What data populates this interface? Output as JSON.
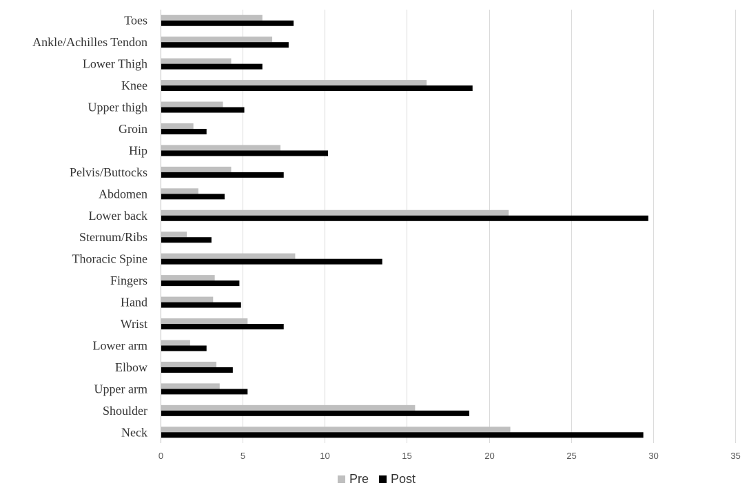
{
  "chart_data": {
    "type": "bar",
    "orientation": "horizontal",
    "categories": [
      "Toes",
      "Ankle/Achilles Tendon",
      "Lower Thigh",
      "Knee",
      "Upper thigh",
      "Groin",
      "Hip",
      "Pelvis/Buttocks",
      "Abdomen",
      "Lower back",
      "Sternum/Ribs",
      "Thoracic Spine",
      "Fingers",
      "Hand",
      "Wrist",
      "Lower arm",
      "Elbow",
      "Upper arm",
      "Shoulder",
      "Neck"
    ],
    "series": [
      {
        "name": "Pre",
        "color": "#bfbfbf",
        "values": [
          6.2,
          6.8,
          4.3,
          16.2,
          3.8,
          2.0,
          7.3,
          4.3,
          2.3,
          21.2,
          1.6,
          8.2,
          3.3,
          3.2,
          5.3,
          1.8,
          3.4,
          3.6,
          15.5,
          21.3
        ]
      },
      {
        "name": "Post",
        "color": "#000000",
        "values": [
          8.1,
          7.8,
          6.2,
          19.0,
          5.1,
          2.8,
          10.2,
          7.5,
          3.9,
          29.7,
          3.1,
          13.5,
          4.8,
          4.9,
          7.5,
          2.8,
          4.4,
          5.3,
          18.8,
          29.4
        ]
      }
    ],
    "xlim": [
      0,
      35
    ],
    "xticks": [
      0,
      5,
      10,
      15,
      20,
      25,
      30,
      35
    ],
    "grid": true,
    "legend_position": "bottom",
    "title": "",
    "xlabel": "",
    "ylabel": ""
  }
}
